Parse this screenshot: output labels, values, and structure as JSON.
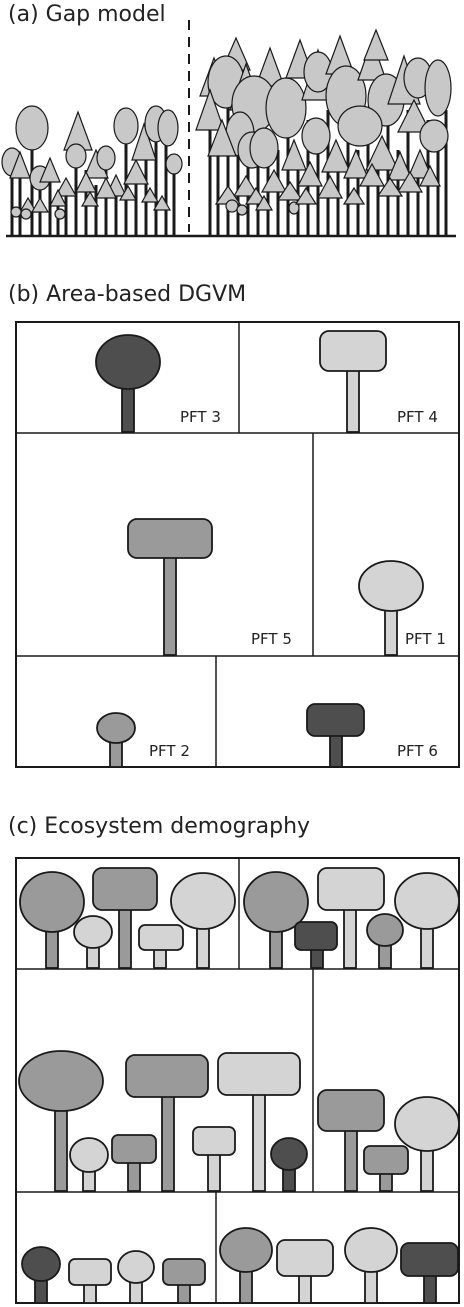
{
  "panels": {
    "a": {
      "title": "(a) Gap model"
    },
    "b": {
      "title": "(b) Area-based DGVM",
      "labels": {
        "pft1": "PFT 1",
        "pft2": "PFT 2",
        "pft3": "PFT 3",
        "pft4": "PFT 4",
        "pft5": "PFT 5",
        "pft6": "PFT 6"
      }
    },
    "c": {
      "title": "(c) Ecosystem demography"
    }
  },
  "colors": {
    "light": "#d4d4d4",
    "medium": "#9a9a9a",
    "dark": "#4e4e4e",
    "outline": "#1a1a1a",
    "background": "#ffffff"
  }
}
